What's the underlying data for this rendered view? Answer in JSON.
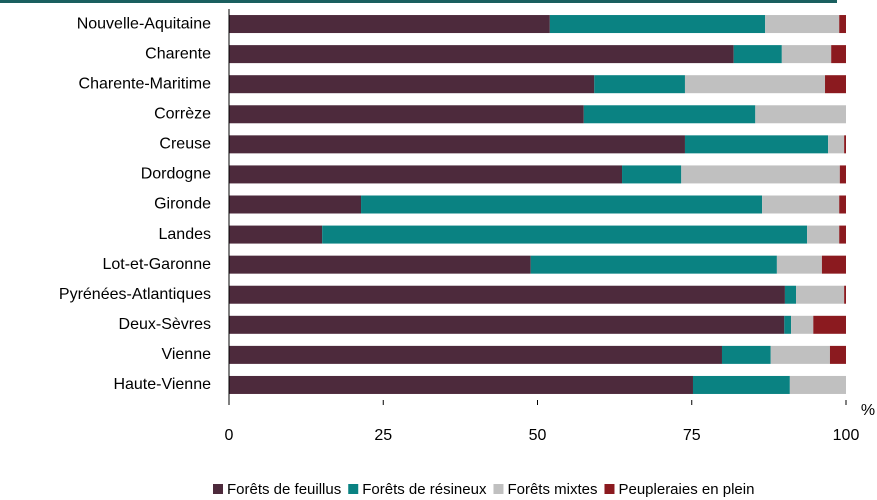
{
  "chart_data": {
    "type": "stacked_barh",
    "categories": [
      "Nouvelle-Aquitaine",
      "Charente",
      "Charente-Maritime",
      "Corrèze",
      "Creuse",
      "Dordogne",
      "Gironde",
      "Landes",
      "Lot-et-Garonne",
      "Pyrénées-Atlantiques",
      "Deux-Sèvres",
      "Vienne",
      "Haute-Vienne"
    ],
    "series": [
      {
        "name": "Forêts de feuillus",
        "color": "#4d2a3c",
        "values": [
          52.0,
          81.8,
          59.2,
          57.5,
          73.9,
          63.7,
          21.4,
          15.1,
          48.9,
          90.1,
          90.0,
          79.9,
          75.2
        ]
      },
      {
        "name": "Forêts de résineux",
        "color": "#0a8282",
        "values": [
          34.9,
          7.8,
          14.7,
          27.8,
          23.2,
          9.6,
          65.0,
          78.6,
          39.9,
          1.8,
          1.1,
          7.9,
          15.7
        ]
      },
      {
        "name": "Forêts mixtes",
        "color": "#c0c0c0",
        "values": [
          12.0,
          8.0,
          22.7,
          14.7,
          2.6,
          25.7,
          12.5,
          5.2,
          7.3,
          7.8,
          3.6,
          9.6,
          9.1
        ]
      },
      {
        "name": "Peupleraies en plein",
        "color": "#8b1a1f",
        "values": [
          1.1,
          2.4,
          3.4,
          0,
          0.3,
          1.0,
          1.1,
          1.1,
          3.9,
          0.3,
          5.3,
          2.6,
          0
        ]
      }
    ],
    "xlabel": "%",
    "xlim": [
      0,
      100
    ],
    "xticks": [
      0,
      25,
      50,
      75,
      100
    ]
  }
}
